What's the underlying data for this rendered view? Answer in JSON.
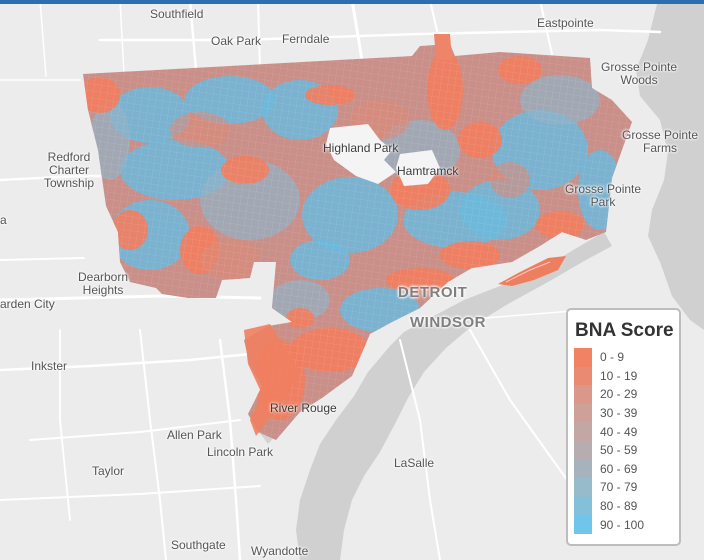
{
  "map": {
    "places": {
      "southfield": "Southfield",
      "oak_park": "Oak Park",
      "ferndale": "Ferndale",
      "eastpointe": "Eastpointe",
      "gp_woods": [
        "Grosse Pointe",
        "Woods"
      ],
      "gp_farms": [
        "Grosse Pointe",
        "Farms"
      ],
      "gp_park": [
        "Grosse Pointe",
        "Park"
      ],
      "redford": [
        "Redford",
        "Charter",
        "Township"
      ],
      "highland_park": "Highland Park",
      "hamtramck": "Hamtramck",
      "dearborn_heights": [
        "Dearborn",
        "Heights"
      ],
      "garden_city": "arden City",
      "inkster": "Inkster",
      "detroit": "DETROIT",
      "windsor": "WINDSOR",
      "river_rouge": "River Rouge",
      "allen_park": "Allen Park",
      "lincoln_park": "Lincoln Park",
      "taylor": "Taylor",
      "lasalle": "LaSalle",
      "southgate": "Southgate",
      "wyandotte": "Wyandotte",
      "edge_a": "a"
    },
    "colors": {
      "background": "#ececec",
      "water": "#d0d0d0",
      "roads": "#ffffff",
      "low_score": "#f27d5e",
      "high_score": "#6cb9dc"
    }
  },
  "legend": {
    "title": "BNA Score",
    "items": [
      {
        "label": "0 - 9",
        "color": "#f28264"
      },
      {
        "label": "10 - 19",
        "color": "#ea8a72"
      },
      {
        "label": "20 - 29",
        "color": "#d9988a"
      },
      {
        "label": "30 - 39",
        "color": "#cea198"
      },
      {
        "label": "40 - 49",
        "color": "#c2a7a4"
      },
      {
        "label": "50 - 59",
        "color": "#b5adb0"
      },
      {
        "label": "60 - 69",
        "color": "#a6b3bd"
      },
      {
        "label": "70 - 79",
        "color": "#96bbcb"
      },
      {
        "label": "80 - 89",
        "color": "#82c1d9"
      },
      {
        "label": "90 - 100",
        "color": "#6fc6ea"
      }
    ]
  }
}
